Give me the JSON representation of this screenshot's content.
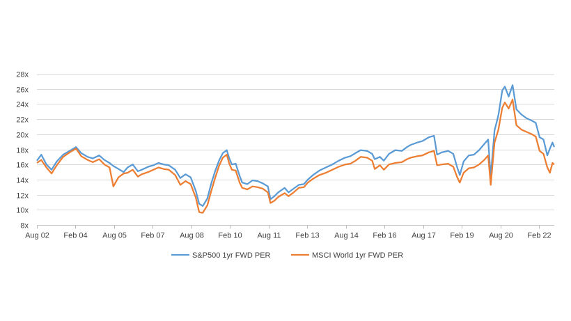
{
  "chart_data": {
    "type": "line",
    "title": "",
    "xlabel": "",
    "ylabel": "",
    "ylim": [
      8,
      28
    ],
    "xlim": [
      2002.58,
      2022.67
    ],
    "grid": "horizontal",
    "legend_position": "bottom",
    "y_ticks": [
      "8x",
      "10x",
      "12x",
      "14x",
      "16x",
      "18x",
      "20x",
      "22x",
      "24x",
      "26x",
      "28x"
    ],
    "y_tick_values": [
      8,
      10,
      12,
      14,
      16,
      18,
      20,
      22,
      24,
      26,
      28
    ],
    "x_ticks": [
      "Aug 02",
      "Feb 04",
      "Aug 05",
      "Feb 07",
      "Aug 08",
      "Feb 10",
      "Aug 11",
      "Feb 13",
      "Aug 14",
      "Feb 16",
      "Aug 17",
      "Feb 19",
      "Aug 20",
      "Feb 22"
    ],
    "x_tick_values": [
      2002.58,
      2004.08,
      2005.58,
      2007.08,
      2008.58,
      2010.08,
      2011.58,
      2013.08,
      2014.58,
      2016.08,
      2017.58,
      2019.08,
      2020.58,
      2022.08
    ],
    "series": [
      {
        "name": "S&P500 1yr FWD PER",
        "color": "#5B9BD5",
        "points": [
          [
            2002.58,
            16.5
          ],
          [
            2002.75,
            17.3
          ],
          [
            2002.95,
            16.0
          ],
          [
            2003.15,
            15.3
          ],
          [
            2003.35,
            16.4
          ],
          [
            2003.6,
            17.3
          ],
          [
            2003.85,
            17.8
          ],
          [
            2004.1,
            18.3
          ],
          [
            2004.3,
            17.5
          ],
          [
            2004.55,
            17.0
          ],
          [
            2004.75,
            16.8
          ],
          [
            2005.0,
            17.2
          ],
          [
            2005.2,
            16.6
          ],
          [
            2005.4,
            16.2
          ],
          [
            2005.55,
            15.8
          ],
          [
            2005.75,
            15.4
          ],
          [
            2005.95,
            15.0
          ],
          [
            2006.1,
            15.6
          ],
          [
            2006.3,
            16.0
          ],
          [
            2006.5,
            15.1
          ],
          [
            2006.65,
            15.3
          ],
          [
            2006.9,
            15.7
          ],
          [
            2007.1,
            15.9
          ],
          [
            2007.3,
            16.2
          ],
          [
            2007.5,
            16.0
          ],
          [
            2007.7,
            15.9
          ],
          [
            2007.95,
            15.3
          ],
          [
            2008.15,
            14.2
          ],
          [
            2008.35,
            14.7
          ],
          [
            2008.55,
            14.3
          ],
          [
            2008.75,
            12.5
          ],
          [
            2008.88,
            10.8
          ],
          [
            2009.02,
            10.5
          ],
          [
            2009.2,
            11.5
          ],
          [
            2009.35,
            13.5
          ],
          [
            2009.5,
            15.1
          ],
          [
            2009.65,
            16.5
          ],
          [
            2009.8,
            17.5
          ],
          [
            2009.95,
            17.9
          ],
          [
            2010.05,
            16.8
          ],
          [
            2010.15,
            16.0
          ],
          [
            2010.3,
            16.1
          ],
          [
            2010.45,
            14.5
          ],
          [
            2010.55,
            13.6
          ],
          [
            2010.75,
            13.4
          ],
          [
            2010.95,
            13.9
          ],
          [
            2011.15,
            13.8
          ],
          [
            2011.35,
            13.5
          ],
          [
            2011.55,
            13.1
          ],
          [
            2011.65,
            11.4
          ],
          [
            2011.8,
            11.8
          ],
          [
            2011.95,
            12.3
          ],
          [
            2012.2,
            12.9
          ],
          [
            2012.35,
            12.3
          ],
          [
            2012.55,
            12.8
          ],
          [
            2012.75,
            13.3
          ],
          [
            2012.95,
            13.4
          ],
          [
            2013.1,
            14.0
          ],
          [
            2013.3,
            14.6
          ],
          [
            2013.55,
            15.2
          ],
          [
            2013.8,
            15.6
          ],
          [
            2014.05,
            16.0
          ],
          [
            2014.3,
            16.5
          ],
          [
            2014.55,
            16.9
          ],
          [
            2014.75,
            17.1
          ],
          [
            2014.95,
            17.5
          ],
          [
            2015.15,
            17.9
          ],
          [
            2015.4,
            17.8
          ],
          [
            2015.6,
            17.4
          ],
          [
            2015.7,
            16.7
          ],
          [
            2015.9,
            17.0
          ],
          [
            2016.05,
            16.5
          ],
          [
            2016.25,
            17.4
          ],
          [
            2016.5,
            17.9
          ],
          [
            2016.75,
            17.8
          ],
          [
            2016.95,
            18.3
          ],
          [
            2017.1,
            18.6
          ],
          [
            2017.35,
            18.9
          ],
          [
            2017.55,
            19.1
          ],
          [
            2017.8,
            19.6
          ],
          [
            2018.0,
            19.8
          ],
          [
            2018.12,
            17.3
          ],
          [
            2018.3,
            17.6
          ],
          [
            2018.55,
            17.8
          ],
          [
            2018.75,
            17.4
          ],
          [
            2018.9,
            15.6
          ],
          [
            2019.0,
            14.6
          ],
          [
            2019.15,
            16.4
          ],
          [
            2019.35,
            17.2
          ],
          [
            2019.55,
            17.3
          ],
          [
            2019.75,
            17.9
          ],
          [
            2019.95,
            18.7
          ],
          [
            2020.1,
            19.3
          ],
          [
            2020.2,
            14.4
          ],
          [
            2020.35,
            20.5
          ],
          [
            2020.5,
            22.5
          ],
          [
            2020.65,
            25.8
          ],
          [
            2020.75,
            26.3
          ],
          [
            2020.9,
            25.0
          ],
          [
            2021.05,
            26.5
          ],
          [
            2021.2,
            23.3
          ],
          [
            2021.4,
            22.6
          ],
          [
            2021.6,
            22.1
          ],
          [
            2021.8,
            21.8
          ],
          [
            2021.95,
            21.5
          ],
          [
            2022.1,
            19.6
          ],
          [
            2022.25,
            19.3
          ],
          [
            2022.4,
            17.2
          ],
          [
            2022.5,
            18.1
          ],
          [
            2022.6,
            18.9
          ],
          [
            2022.67,
            18.3
          ]
        ]
      },
      {
        "name": "MSCI World 1yr FWD PER",
        "color": "#ED7D31",
        "points": [
          [
            2002.58,
            16.2
          ],
          [
            2002.75,
            16.6
          ],
          [
            2002.95,
            15.6
          ],
          [
            2003.15,
            14.8
          ],
          [
            2003.35,
            15.9
          ],
          [
            2003.6,
            17.0
          ],
          [
            2003.85,
            17.6
          ],
          [
            2004.1,
            18.1
          ],
          [
            2004.3,
            17.1
          ],
          [
            2004.55,
            16.6
          ],
          [
            2004.75,
            16.3
          ],
          [
            2005.0,
            16.7
          ],
          [
            2005.2,
            16.0
          ],
          [
            2005.4,
            15.6
          ],
          [
            2005.55,
            13.1
          ],
          [
            2005.75,
            14.3
          ],
          [
            2005.95,
            14.8
          ],
          [
            2006.1,
            14.9
          ],
          [
            2006.3,
            15.3
          ],
          [
            2006.5,
            14.4
          ],
          [
            2006.65,
            14.7
          ],
          [
            2006.9,
            15.0
          ],
          [
            2007.1,
            15.3
          ],
          [
            2007.3,
            15.6
          ],
          [
            2007.5,
            15.4
          ],
          [
            2007.7,
            15.3
          ],
          [
            2007.95,
            14.6
          ],
          [
            2008.15,
            13.3
          ],
          [
            2008.35,
            13.8
          ],
          [
            2008.55,
            13.4
          ],
          [
            2008.75,
            11.6
          ],
          [
            2008.88,
            9.7
          ],
          [
            2009.02,
            9.6
          ],
          [
            2009.2,
            10.6
          ],
          [
            2009.35,
            12.5
          ],
          [
            2009.5,
            14.2
          ],
          [
            2009.65,
            15.8
          ],
          [
            2009.8,
            16.9
          ],
          [
            2009.95,
            17.3
          ],
          [
            2010.05,
            16.1
          ],
          [
            2010.15,
            15.3
          ],
          [
            2010.3,
            15.2
          ],
          [
            2010.45,
            13.6
          ],
          [
            2010.55,
            12.9
          ],
          [
            2010.75,
            12.7
          ],
          [
            2010.95,
            13.1
          ],
          [
            2011.15,
            13.0
          ],
          [
            2011.35,
            12.8
          ],
          [
            2011.55,
            12.3
          ],
          [
            2011.65,
            10.9
          ],
          [
            2011.8,
            11.2
          ],
          [
            2011.95,
            11.7
          ],
          [
            2012.2,
            12.2
          ],
          [
            2012.35,
            11.8
          ],
          [
            2012.55,
            12.3
          ],
          [
            2012.75,
            12.9
          ],
          [
            2012.95,
            13.0
          ],
          [
            2013.1,
            13.6
          ],
          [
            2013.3,
            14.1
          ],
          [
            2013.55,
            14.6
          ],
          [
            2013.8,
            14.9
          ],
          [
            2014.05,
            15.3
          ],
          [
            2014.3,
            15.7
          ],
          [
            2014.55,
            16.0
          ],
          [
            2014.75,
            16.1
          ],
          [
            2014.95,
            16.5
          ],
          [
            2015.15,
            17.0
          ],
          [
            2015.4,
            16.9
          ],
          [
            2015.6,
            16.5
          ],
          [
            2015.7,
            15.4
          ],
          [
            2015.9,
            15.9
          ],
          [
            2016.05,
            15.3
          ],
          [
            2016.25,
            16.0
          ],
          [
            2016.5,
            16.2
          ],
          [
            2016.75,
            16.3
          ],
          [
            2016.95,
            16.7
          ],
          [
            2017.1,
            16.9
          ],
          [
            2017.35,
            17.1
          ],
          [
            2017.55,
            17.2
          ],
          [
            2017.8,
            17.6
          ],
          [
            2018.0,
            17.8
          ],
          [
            2018.12,
            15.9
          ],
          [
            2018.3,
            16.0
          ],
          [
            2018.55,
            16.1
          ],
          [
            2018.75,
            15.7
          ],
          [
            2018.9,
            14.3
          ],
          [
            2019.0,
            13.6
          ],
          [
            2019.15,
            14.9
          ],
          [
            2019.35,
            15.5
          ],
          [
            2019.55,
            15.6
          ],
          [
            2019.75,
            16.0
          ],
          [
            2019.95,
            16.6
          ],
          [
            2020.1,
            17.2
          ],
          [
            2020.2,
            13.3
          ],
          [
            2020.35,
            18.9
          ],
          [
            2020.5,
            20.6
          ],
          [
            2020.65,
            23.5
          ],
          [
            2020.75,
            24.2
          ],
          [
            2020.9,
            23.4
          ],
          [
            2021.05,
            24.6
          ],
          [
            2021.2,
            21.2
          ],
          [
            2021.4,
            20.6
          ],
          [
            2021.6,
            20.3
          ],
          [
            2021.8,
            20.0
          ],
          [
            2021.95,
            19.7
          ],
          [
            2022.1,
            17.8
          ],
          [
            2022.25,
            17.4
          ],
          [
            2022.4,
            15.6
          ],
          [
            2022.5,
            14.9
          ],
          [
            2022.6,
            16.2
          ],
          [
            2022.67,
            16.0
          ]
        ]
      }
    ]
  }
}
